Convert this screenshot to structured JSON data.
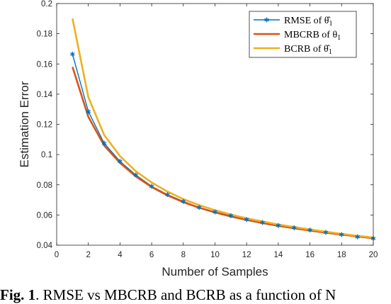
{
  "chart_data": {
    "type": "line",
    "xlabel": "Number of Samples",
    "ylabel": "Estimation Error",
    "xlim": [
      0,
      20
    ],
    "ylim": [
      0.04,
      0.2
    ],
    "xticks": [
      0,
      2,
      4,
      6,
      8,
      10,
      12,
      14,
      16,
      18,
      20
    ],
    "yticks": [
      0.04,
      0.06,
      0.08,
      0.1,
      0.12,
      0.14,
      0.16,
      0.18,
      0.2
    ],
    "xtick_labels": [
      "0",
      "2",
      "4",
      "6",
      "8",
      "10",
      "12",
      "14",
      "16",
      "18",
      "20"
    ],
    "ytick_labels": [
      "0.04",
      "0.06",
      "0.08",
      "0.1",
      "0.12",
      "0.14",
      "0.16",
      "0.18",
      "0.2"
    ],
    "grid": false,
    "legend_position": "top-right",
    "x": [
      1,
      2,
      3,
      4,
      5,
      6,
      7,
      8,
      9,
      10,
      11,
      12,
      13,
      14,
      15,
      16,
      17,
      18,
      19,
      20
    ],
    "series": [
      {
        "name": "RMSE of θ̂",
        "name_sub": "1",
        "color": "#0072BD",
        "marker": "asterisk",
        "values": [
          0.1665,
          0.1285,
          0.1075,
          0.0955,
          0.0865,
          0.079,
          0.0735,
          0.069,
          0.065,
          0.062,
          0.0595,
          0.057,
          0.055,
          0.053,
          0.0515,
          0.05,
          0.0485,
          0.047,
          0.0455,
          0.0445
        ]
      },
      {
        "name": "MBCRB of θ",
        "name_sub": "1",
        "color": "#D95319",
        "marker": "none",
        "values": [
          0.158,
          0.125,
          0.106,
          0.0945,
          0.0855,
          0.0785,
          0.073,
          0.0685,
          0.0648,
          0.0617,
          0.059,
          0.0567,
          0.0547,
          0.0528,
          0.0512,
          0.0497,
          0.0483,
          0.047,
          0.0458,
          0.0446
        ]
      },
      {
        "name": "BCRB of θ̂",
        "name_sub": "1",
        "color": "#EDB120",
        "marker": "none",
        "values": [
          0.19,
          0.138,
          0.113,
          0.099,
          0.089,
          0.0815,
          0.0755,
          0.0705,
          0.0665,
          0.0632,
          0.0603,
          0.0578,
          0.0557,
          0.0537,
          0.052,
          0.0504,
          0.0489,
          0.0475,
          0.0462,
          0.045
        ]
      }
    ]
  },
  "caption": {
    "label": "Fig. 1",
    "text": ". RMSE vs MBCRB and BCRB as a function of N"
  }
}
